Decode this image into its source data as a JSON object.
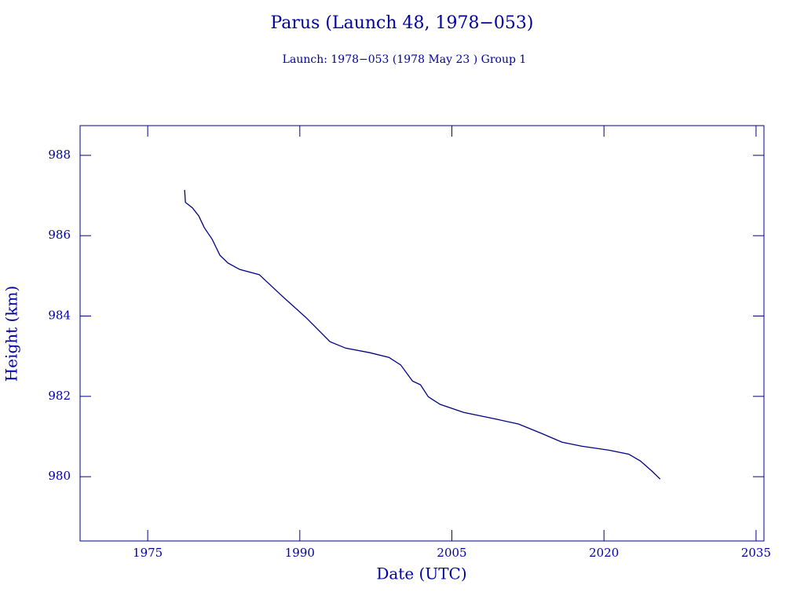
{
  "chart_data": {
    "type": "line",
    "title": "Parus (Launch 48, 1978−053)",
    "subtitle": "Launch: 1978−053  (1978 May 23 )  Group 1",
    "x_label": "Date (UTC)",
    "y_label": "Height (km)",
    "x": [
      1978.64,
      1978.72,
      1979.42,
      1980.04,
      1980.58,
      1981.36,
      1982.13,
      1982.91,
      1984.07,
      1986.0,
      1988.33,
      1990.66,
      1992.98,
      1994.53,
      1996.86,
      1998.8,
      1999.96,
      2001.12,
      2001.9,
      2002.67,
      2003.84,
      2006.16,
      2008.88,
      2011.59,
      2013.91,
      2015.85,
      2017.79,
      2020.5,
      2022.44,
      2023.6,
      2024.77,
      2025.54
    ],
    "series": [
      {
        "name": "Height",
        "color": "#000080",
        "values": [
          987.14,
          986.83,
          986.69,
          986.49,
          986.2,
          985.91,
          985.51,
          985.32,
          985.16,
          985.03,
          984.48,
          983.95,
          983.36,
          983.2,
          983.09,
          982.97,
          982.78,
          982.38,
          982.29,
          981.99,
          981.8,
          981.6,
          981.46,
          981.31,
          981.07,
          980.86,
          980.76,
          980.66,
          980.56,
          980.39,
          980.13,
          979.94
        ]
      }
    ],
    "xlim": [
      1968.33,
      2035.78
    ],
    "ylim": [
      978.4,
      988.74
    ],
    "xticks": [
      1975,
      1990,
      2005,
      2020,
      2035
    ],
    "yticks": [
      980,
      982,
      984,
      986,
      988
    ],
    "grid": false
  }
}
